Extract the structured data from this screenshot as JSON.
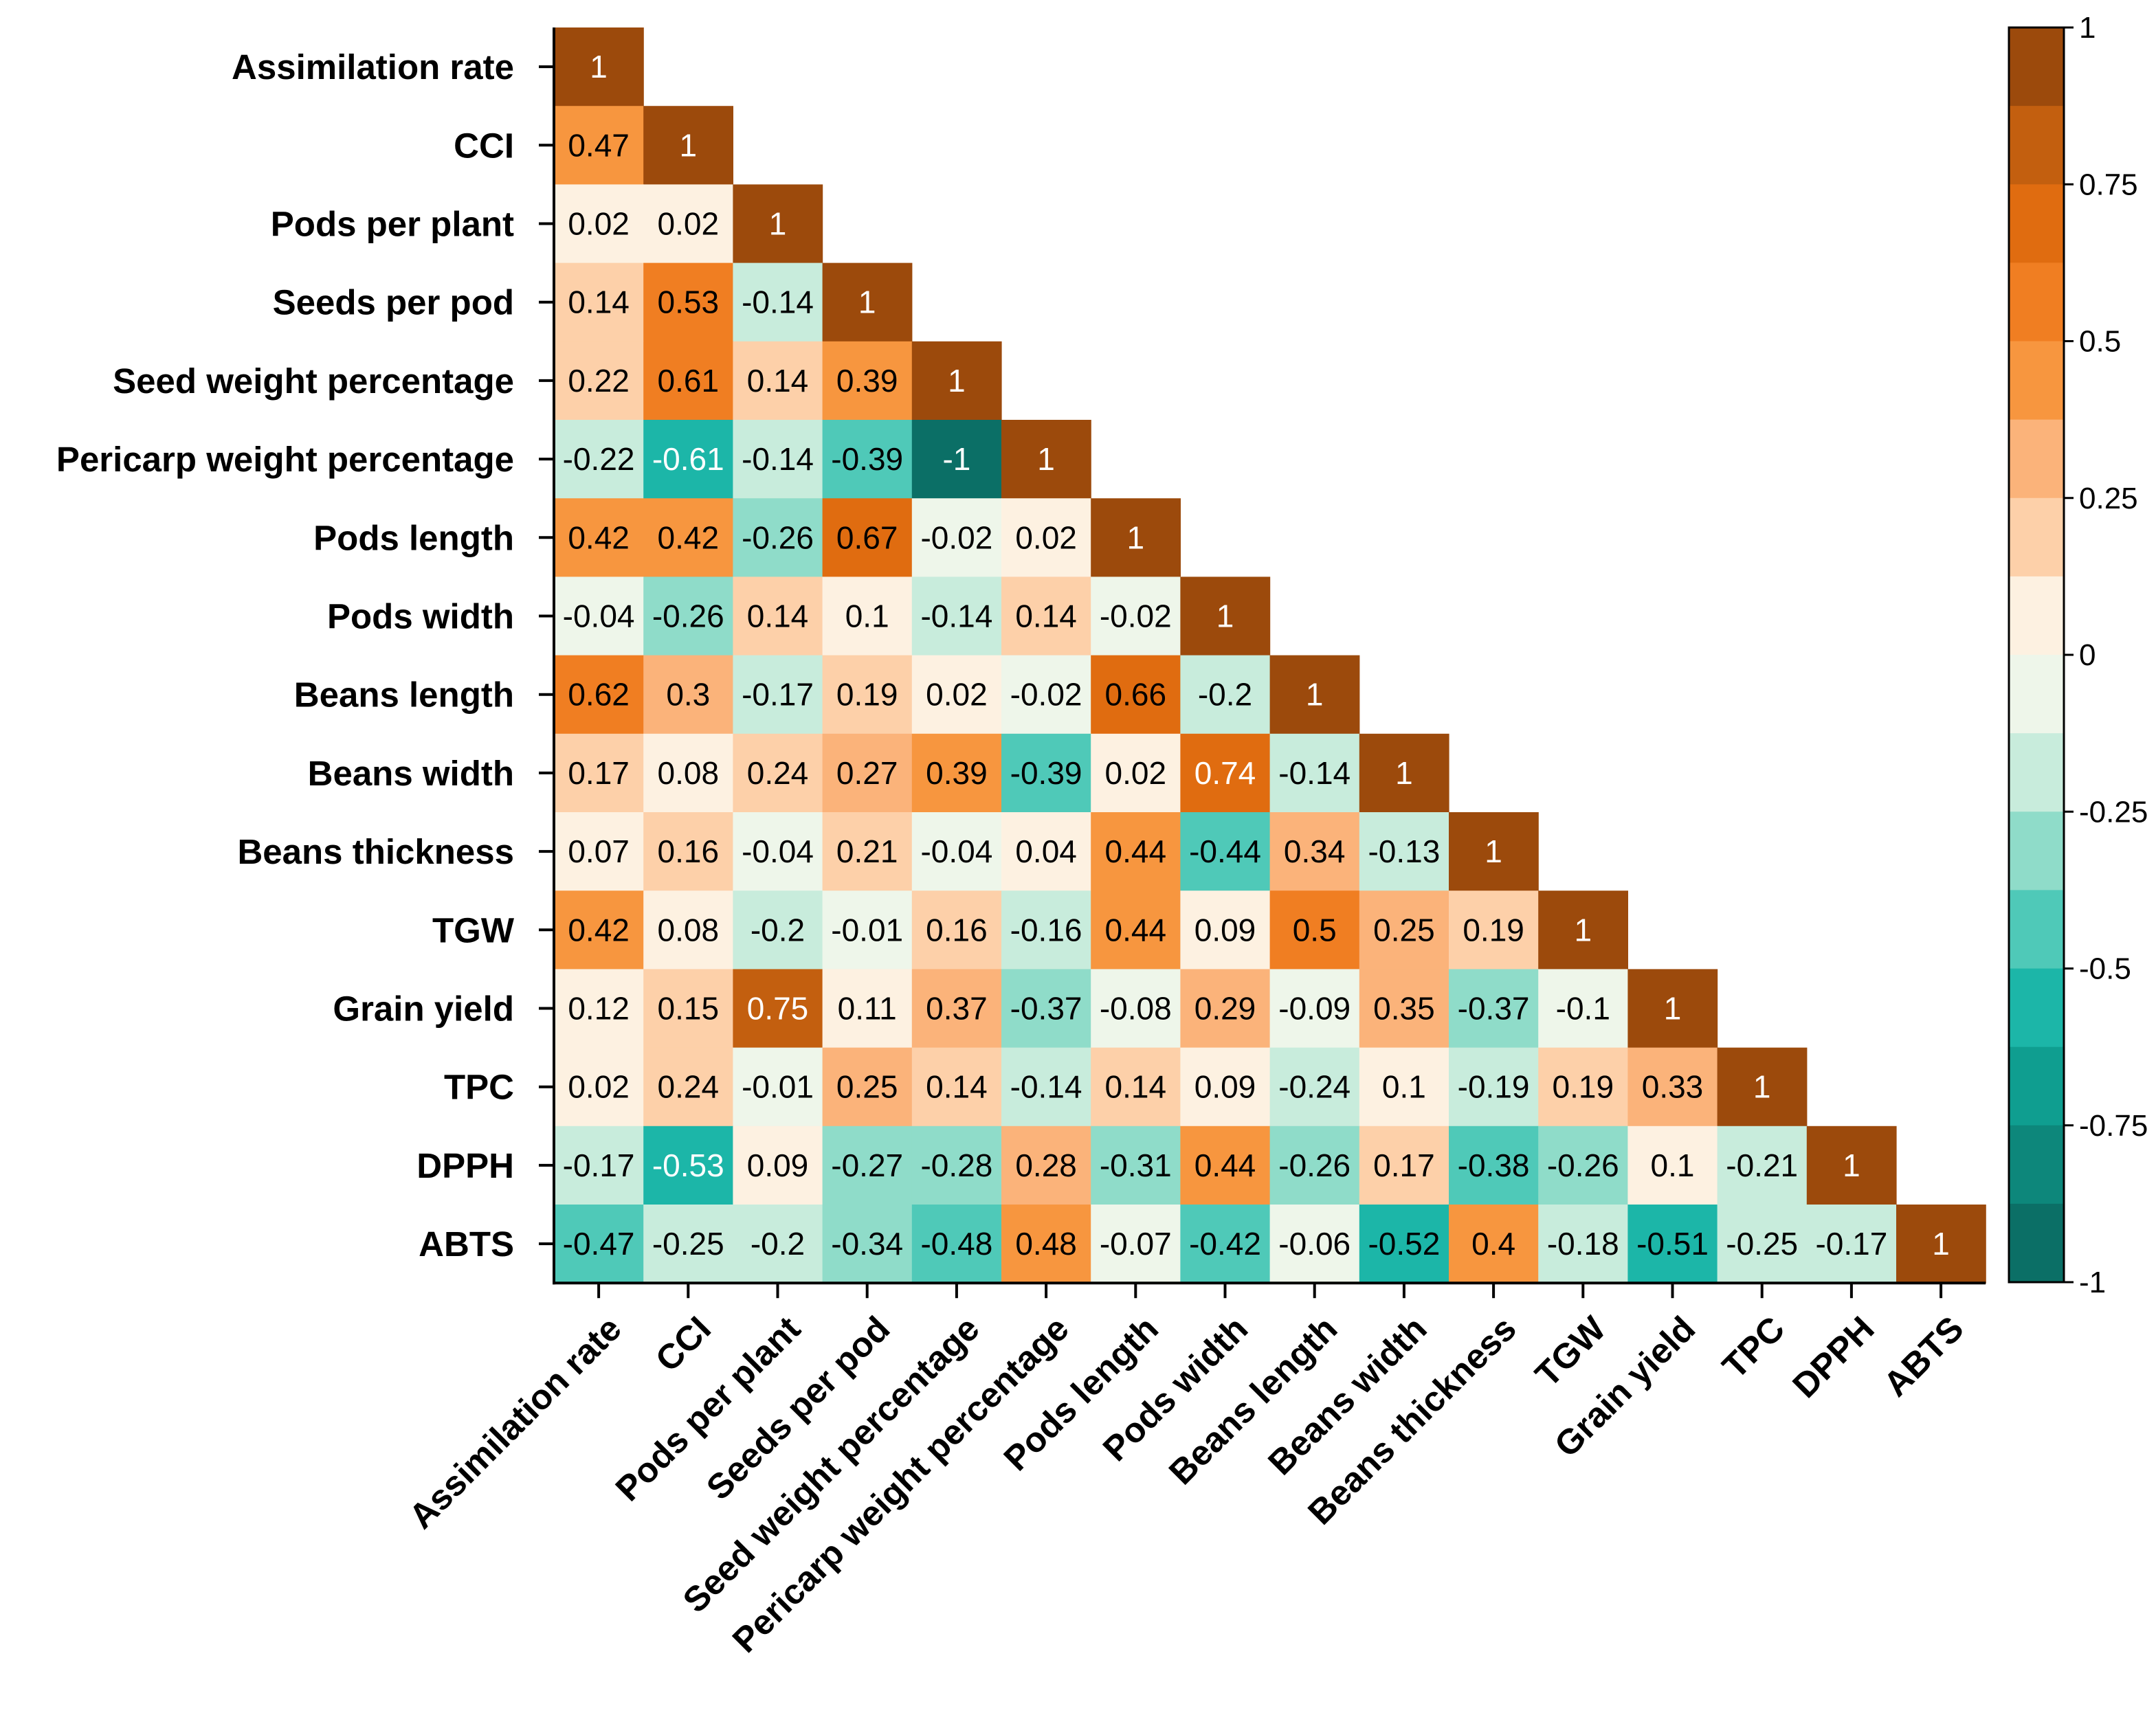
{
  "chart_data": {
    "type": "heatmap",
    "title": "",
    "variables": [
      "Assimilation rate",
      "CCI",
      "Pods per plant",
      "Seeds per pod",
      "Seed weight percentage",
      "Pericarp weight percentage",
      "Pods length",
      "Pods width",
      "Beans length",
      "Beans width",
      "Beans thickness",
      "TGW",
      "Grain yield",
      "TPC",
      "DPPH",
      "ABTS"
    ],
    "matrix_lower": [
      [
        1
      ],
      [
        0.47,
        1
      ],
      [
        0.02,
        0.02,
        1
      ],
      [
        0.14,
        0.53,
        -0.14,
        1
      ],
      [
        0.22,
        0.61,
        0.14,
        0.39,
        1
      ],
      [
        -0.22,
        -0.61,
        -0.14,
        -0.39,
        -1,
        1
      ],
      [
        0.42,
        0.42,
        -0.26,
        0.67,
        -0.02,
        0.02,
        1
      ],
      [
        -0.04,
        -0.26,
        0.14,
        0.1,
        -0.14,
        0.14,
        -0.02,
        1
      ],
      [
        0.62,
        0.3,
        -0.17,
        0.19,
        0.02,
        -0.02,
        0.66,
        -0.2,
        1
      ],
      [
        0.17,
        0.08,
        0.24,
        0.27,
        0.39,
        -0.39,
        0.02,
        0.74,
        -0.14,
        1
      ],
      [
        0.07,
        0.16,
        -0.04,
        0.21,
        -0.04,
        0.04,
        0.44,
        -0.44,
        0.34,
        -0.13,
        1
      ],
      [
        0.42,
        0.08,
        -0.2,
        -0.01,
        0.16,
        -0.16,
        0.44,
        0.09,
        0.5,
        0.25,
        0.19,
        1
      ],
      [
        0.12,
        0.15,
        0.75,
        0.11,
        0.37,
        -0.37,
        -0.08,
        0.29,
        -0.09,
        0.35,
        -0.37,
        -0.1,
        1
      ],
      [
        0.02,
        0.24,
        -0.01,
        0.25,
        0.14,
        -0.14,
        0.14,
        0.09,
        -0.24,
        0.1,
        -0.19,
        0.19,
        0.33,
        1
      ],
      [
        -0.17,
        -0.53,
        0.09,
        -0.27,
        -0.28,
        0.28,
        -0.31,
        0.44,
        -0.26,
        0.17,
        -0.38,
        -0.26,
        0.1,
        -0.21,
        1
      ],
      [
        -0.47,
        -0.25,
        -0.2,
        -0.34,
        -0.48,
        0.48,
        -0.07,
        -0.42,
        -0.06,
        -0.52,
        0.4,
        -0.18,
        -0.51,
        -0.25,
        -0.17,
        1
      ]
    ],
    "colorbar": {
      "range": [
        -1,
        1
      ],
      "ticks": [
        1,
        0.75,
        0.5,
        0.25,
        0,
        -0.25,
        -0.5,
        -0.75,
        -1
      ],
      "tick_labels": [
        "1",
        "0.75",
        "0.5",
        "0.25",
        "0",
        "-0.25",
        "-0.5",
        "-0.75",
        "-1"
      ],
      "color_bins": [
        {
          "from": 0.875,
          "to": 1,
          "color": "#9c4a0c"
        },
        {
          "from": 0.75,
          "to": 0.875,
          "color": "#c35f0f"
        },
        {
          "from": 0.625,
          "to": 0.75,
          "color": "#e06c10"
        },
        {
          "from": 0.5,
          "to": 0.625,
          "color": "#f07e22"
        },
        {
          "from": 0.375,
          "to": 0.5,
          "color": "#f7963f"
        },
        {
          "from": 0.25,
          "to": 0.375,
          "color": "#fbb37a"
        },
        {
          "from": 0.125,
          "to": 0.25,
          "color": "#fdd0a9"
        },
        {
          "from": 0,
          "to": 0.125,
          "color": "#fdf1e1"
        },
        {
          "from": -0.125,
          "to": 0,
          "color": "#eef6ea"
        },
        {
          "from": -0.25,
          "to": -0.125,
          "color": "#c8ecdc"
        },
        {
          "from": -0.375,
          "to": -0.25,
          "color": "#8fdcc9"
        },
        {
          "from": -0.5,
          "to": -0.375,
          "color": "#4fc9b8"
        },
        {
          "from": -0.625,
          "to": -0.5,
          "color": "#1cb6a8"
        },
        {
          "from": -0.75,
          "to": -0.625,
          "color": "#0f9e90"
        },
        {
          "from": -0.875,
          "to": -0.75,
          "color": "#0d877b"
        },
        {
          "from": -1,
          "to": -0.875,
          "color": "#0b6f66"
        }
      ]
    }
  }
}
